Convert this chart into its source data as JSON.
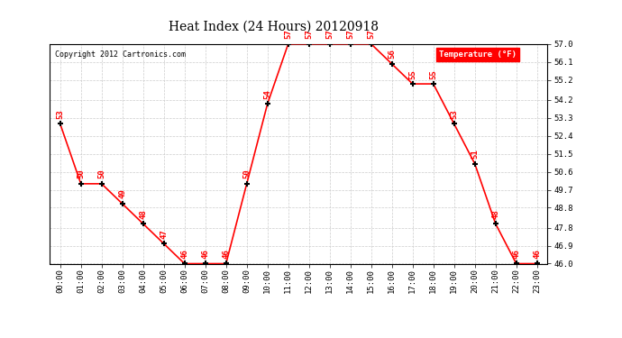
{
  "title": "Heat Index (24 Hours) 20120918",
  "copyright": "Copyright 2012 Cartronics.com",
  "legend_label": "Temperature (°F)",
  "hours": [
    "00:00",
    "01:00",
    "02:00",
    "03:00",
    "04:00",
    "05:00",
    "06:00",
    "07:00",
    "08:00",
    "09:00",
    "10:00",
    "11:00",
    "12:00",
    "13:00",
    "14:00",
    "15:00",
    "16:00",
    "17:00",
    "18:00",
    "19:00",
    "20:00",
    "21:00",
    "22:00",
    "23:00"
  ],
  "values": [
    53,
    50,
    50,
    49,
    48,
    47,
    46,
    46,
    46,
    50,
    54,
    57,
    57,
    57,
    57,
    57,
    56,
    55,
    55,
    53,
    51,
    48,
    46,
    46
  ],
  "ylim_min": 46.0,
  "ylim_max": 57.0,
  "yticks": [
    46.0,
    46.9,
    47.8,
    48.8,
    49.7,
    50.6,
    51.5,
    52.4,
    53.3,
    54.2,
    55.2,
    56.1,
    57.0
  ],
  "line_color": "red",
  "marker_color": "black",
  "label_color": "red",
  "bg_color": "white",
  "grid_color": "#cccccc",
  "legend_bg": "red",
  "legend_text_color": "white",
  "title_color": "black",
  "copyright_color": "black",
  "fig_width": 6.9,
  "fig_height": 3.75,
  "dpi": 100
}
